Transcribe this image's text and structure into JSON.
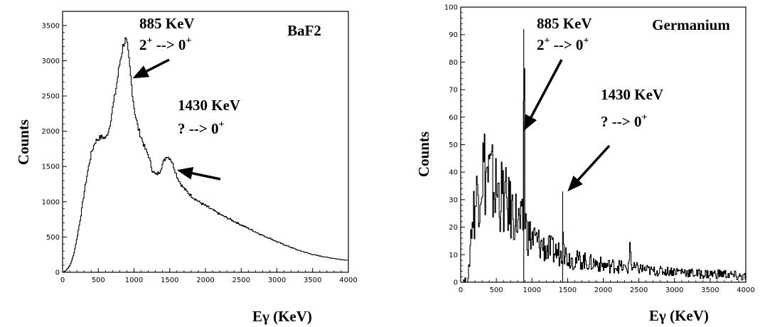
{
  "chart_data": [
    {
      "type": "line",
      "xlabel": "Eγ (KeV)",
      "ylabel": "Counts",
      "xlim": [
        0,
        4000
      ],
      "ylim": [
        0,
        3700
      ],
      "x_ticks": [
        0,
        500,
        1000,
        1500,
        2000,
        2500,
        3000,
        3500,
        4000
      ],
      "y_ticks": [
        0,
        500,
        1000,
        1500,
        2000,
        2500,
        3000,
        3500
      ],
      "x_tick_labels": [
        "0",
        "500",
        "1000",
        "1500",
        "2000",
        "2500",
        "3000",
        "3500",
        "4000"
      ],
      "y_tick_labels": [
        "0",
        "500",
        "1000",
        "1500",
        "2000",
        "2500",
        "3000",
        "3500"
      ],
      "corner_label": "BaF2",
      "annotations": [
        {
          "line1": "885 KeV",
          "line2_main": "2",
          "line2_sup": "+",
          "line2_rest": " --> 0",
          "line2_sup2": "+",
          "arrow_to": [
            980,
            2750
          ]
        },
        {
          "line1": "1430  KeV",
          "line2_main": "?",
          "line2_sup": "",
          "line2_rest": "  --> 0",
          "line2_sup2": "+",
          "arrow_to": [
            1600,
            1450
          ]
        }
      ],
      "series": [
        {
          "x": [
            0,
            50,
            100,
            150,
            200,
            250,
            300,
            350,
            400,
            450,
            500,
            550,
            600,
            650,
            700,
            750,
            800,
            850,
            880,
            900,
            930,
            960,
            1000,
            1050,
            1100,
            1150,
            1200,
            1250,
            1300,
            1350,
            1400,
            1450,
            1500,
            1550,
            1600,
            1650,
            1700,
            1800,
            1900,
            2000,
            2100,
            2200,
            2300,
            2400,
            2500,
            2600,
            2700,
            2800,
            2900,
            3000,
            3100,
            3200,
            3300,
            3400,
            3500,
            3600,
            3700,
            3800,
            3900,
            4000
          ],
          "y": [
            0,
            30,
            100,
            250,
            500,
            800,
            1150,
            1450,
            1700,
            1850,
            1900,
            1920,
            1900,
            2050,
            2350,
            2650,
            3000,
            3250,
            3300,
            3200,
            2950,
            2650,
            2300,
            2050,
            1900,
            1750,
            1650,
            1450,
            1380,
            1420,
            1550,
            1650,
            1620,
            1500,
            1350,
            1250,
            1180,
            1080,
            1000,
            940,
            880,
            820,
            770,
            720,
            670,
            620,
            570,
            520,
            480,
            430,
            390,
            350,
            310,
            280,
            250,
            230,
            210,
            195,
            180,
            170
          ]
        }
      ]
    },
    {
      "type": "line",
      "xlabel": "Eγ (KeV)",
      "ylabel": "Counts",
      "xlim": [
        0,
        4000
      ],
      "ylim": [
        0,
        100
      ],
      "x_ticks": [
        0,
        500,
        1000,
        1500,
        2000,
        2500,
        3000,
        3500,
        4000
      ],
      "y_ticks": [
        0,
        10,
        20,
        30,
        40,
        50,
        60,
        70,
        80,
        90,
        100
      ],
      "x_tick_labels": [
        "0",
        "500",
        "1000",
        "1500",
        "2000",
        "2500",
        "3000",
        "3500",
        "4000"
      ],
      "y_tick_labels": [
        "0",
        "10",
        "20",
        "30",
        "40",
        "50",
        "60",
        "70",
        "80",
        "90",
        "100"
      ],
      "corner_label": "Germanium",
      "annotations": [
        {
          "line1": "885 KeV",
          "line2_main": "2",
          "line2_sup": "+",
          "line2_rest": " --> 0",
          "line2_sup2": "+",
          "arrow_to": [
            885,
            55
          ]
        },
        {
          "line1": "1430  KeV",
          "line2_main": "?",
          "line2_sup": "",
          "line2_rest": "  --> 0",
          "line2_sup2": "+",
          "arrow_to": [
            1500,
            33
          ]
        }
      ],
      "series": [
        {
          "x": [
            0,
            100,
            150,
            200,
            250,
            300,
            350,
            400,
            450,
            500,
            550,
            600,
            650,
            700,
            750,
            800,
            850,
            870,
            885,
            900,
            920,
            950,
            1000,
            1050,
            1100,
            1150,
            1200,
            1250,
            1300,
            1350,
            1400,
            1420,
            1430,
            1445,
            1470,
            1500,
            1600,
            1700,
            1800,
            1900,
            2000,
            2100,
            2200,
            2300,
            2350,
            2370,
            2400,
            2500,
            2700,
            2900,
            3100,
            3300,
            3500,
            3700,
            3900,
            4000
          ],
          "y": [
            0,
            0,
            22,
            28,
            36,
            42,
            40,
            38,
            35,
            33,
            32,
            30,
            28,
            26,
            25,
            22,
            20,
            22,
            92,
            25,
            18,
            17,
            16,
            15,
            14,
            13,
            12,
            12,
            11,
            11,
            10,
            12,
            33,
            12,
            10,
            9,
            8,
            8,
            7,
            7,
            6,
            6,
            6,
            5,
            5,
            14,
            5,
            5,
            4,
            4,
            4,
            3,
            3,
            3,
            2,
            2
          ]
        }
      ]
    }
  ]
}
